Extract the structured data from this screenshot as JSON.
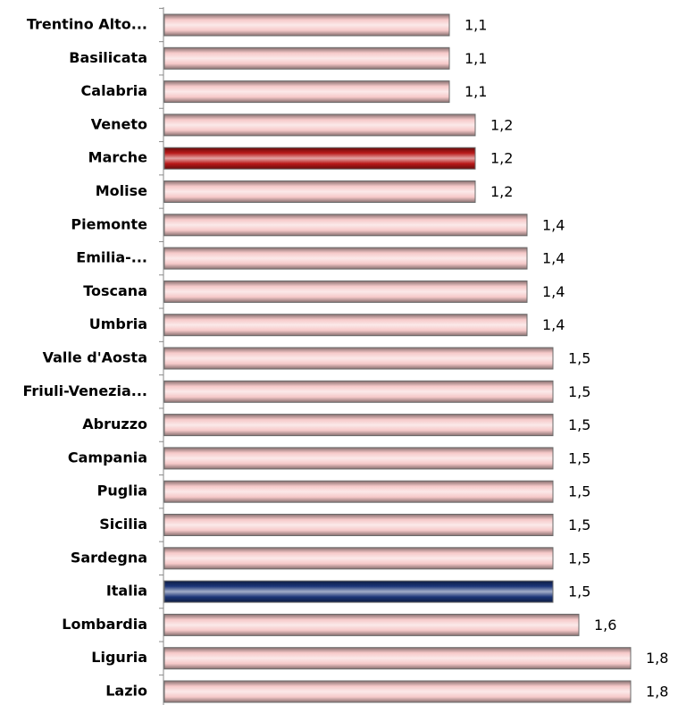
{
  "chart_data": {
    "type": "bar",
    "orientation": "horizontal",
    "categories": [
      "Trentino Alto...",
      "Basilicata",
      "Calabria",
      "Veneto",
      "Marche",
      "Molise",
      "Piemonte",
      "Emilia-...",
      "Toscana",
      "Umbria",
      "Valle d'Aosta",
      "Friuli-Venezia...",
      "Abruzzo",
      "Campania",
      "Puglia",
      "Sicilia",
      "Sardegna",
      "Italia",
      "Lombardia",
      "Liguria",
      "Lazio"
    ],
    "values": [
      1.1,
      1.1,
      1.1,
      1.2,
      1.2,
      1.2,
      1.4,
      1.4,
      1.4,
      1.4,
      1.5,
      1.5,
      1.5,
      1.5,
      1.5,
      1.5,
      1.5,
      1.5,
      1.6,
      1.8,
      1.8
    ],
    "value_labels": [
      "1,1",
      "1,1",
      "1,1",
      "1,2",
      "1,2",
      "1,2",
      "1,4",
      "1,4",
      "1,4",
      "1,4",
      "1,5",
      "1,5",
      "1,5",
      "1,5",
      "1,5",
      "1,5",
      "1,5",
      "1,5",
      "1,6",
      "1,8",
      "1,8"
    ],
    "colors": [
      "#f6c9c9",
      "#f6c9c9",
      "#f6c9c9",
      "#f6c9c9",
      "#b81818",
      "#f6c9c9",
      "#f6c9c9",
      "#f6c9c9",
      "#f6c9c9",
      "#f6c9c9",
      "#f6c9c9",
      "#f6c9c9",
      "#f6c9c9",
      "#f6c9c9",
      "#f6c9c9",
      "#f6c9c9",
      "#f6c9c9",
      "#1c3578",
      "#f6c9c9",
      "#f6c9c9",
      "#f6c9c9"
    ]
  }
}
